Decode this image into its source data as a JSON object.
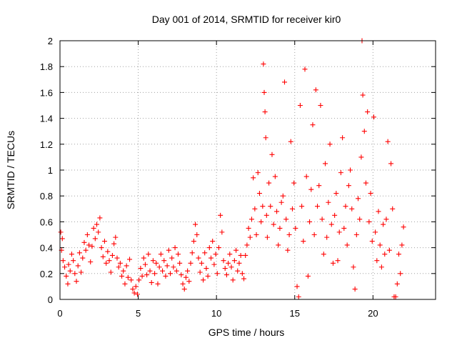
{
  "chart_data": {
    "type": "scatter",
    "title": "Day 001 of 2014, SRMTID for receiver kir0",
    "xlabel": "GPS time / hours",
    "ylabel": "SRMTID / TECUs",
    "xlim": [
      0,
      24
    ],
    "ylim": [
      0,
      2
    ],
    "xticks": [
      0,
      5,
      10,
      15,
      20
    ],
    "yticks": [
      0,
      0.2,
      0.4,
      0.6,
      0.8,
      1,
      1.2,
      1.4,
      1.6,
      1.8,
      2
    ],
    "xtick_labels": [
      "0",
      "5",
      "10",
      "15",
      "20"
    ],
    "ytick_labels": [
      "0",
      "0.2",
      "0.4",
      "0.6",
      "0.8",
      "1",
      "1.2",
      "1.4",
      "1.6",
      "1.8",
      "2"
    ],
    "grid": true,
    "marker": "+",
    "series": [
      {
        "name": "kir0",
        "color": "#ff0000",
        "points": [
          [
            0.05,
            0.52
          ],
          [
            0.1,
            0.38
          ],
          [
            0.15,
            0.47
          ],
          [
            0.2,
            0.3
          ],
          [
            0.3,
            0.25
          ],
          [
            0.4,
            0.18
          ],
          [
            0.5,
            0.12
          ],
          [
            0.55,
            0.27
          ],
          [
            0.65,
            0.22
          ],
          [
            0.75,
            0.35
          ],
          [
            0.85,
            0.3
          ],
          [
            0.95,
            0.2
          ],
          [
            1.05,
            0.14
          ],
          [
            1.15,
            0.26
          ],
          [
            1.25,
            0.36
          ],
          [
            1.35,
            0.21
          ],
          [
            1.45,
            0.32
          ],
          [
            1.55,
            0.44
          ],
          [
            1.65,
            0.38
          ],
          [
            1.75,
            0.5
          ],
          [
            1.85,
            0.42
          ],
          [
            1.95,
            0.29
          ],
          [
            2.05,
            0.41
          ],
          [
            2.15,
            0.55
          ],
          [
            2.25,
            0.47
          ],
          [
            2.35,
            0.58
          ],
          [
            2.45,
            0.52
          ],
          [
            2.55,
            0.63
          ],
          [
            2.65,
            0.4
          ],
          [
            2.75,
            0.33
          ],
          [
            2.85,
            0.45
          ],
          [
            2.95,
            0.28
          ],
          [
            3.05,
            0.37
          ],
          [
            3.15,
            0.3
          ],
          [
            3.25,
            0.21
          ],
          [
            3.35,
            0.34
          ],
          [
            3.45,
            0.43
          ],
          [
            3.55,
            0.48
          ],
          [
            3.65,
            0.32
          ],
          [
            3.75,
            0.25
          ],
          [
            3.85,
            0.28
          ],
          [
            3.95,
            0.18
          ],
          [
            4.05,
            0.22
          ],
          [
            4.15,
            0.12
          ],
          [
            4.25,
            0.26
          ],
          [
            4.35,
            0.17
          ],
          [
            4.45,
            0.31
          ],
          [
            4.55,
            0.15
          ],
          [
            4.65,
            0.08
          ],
          [
            4.75,
            0.05
          ],
          [
            4.85,
            0.1
          ],
          [
            4.95,
            0.04
          ],
          [
            5.05,
            0.15
          ],
          [
            5.15,
            0.24
          ],
          [
            5.25,
            0.18
          ],
          [
            5.35,
            0.32
          ],
          [
            5.45,
            0.27
          ],
          [
            5.55,
            0.19
          ],
          [
            5.65,
            0.35
          ],
          [
            5.75,
            0.22
          ],
          [
            5.85,
            0.13
          ],
          [
            5.95,
            0.3
          ],
          [
            6.05,
            0.2
          ],
          [
            6.15,
            0.28
          ],
          [
            6.25,
            0.12
          ],
          [
            6.35,
            0.25
          ],
          [
            6.45,
            0.35
          ],
          [
            6.55,
            0.22
          ],
          [
            6.65,
            0.3
          ],
          [
            6.75,
            0.18
          ],
          [
            6.85,
            0.26
          ],
          [
            6.95,
            0.38
          ],
          [
            7.05,
            0.2
          ],
          [
            7.15,
            0.32
          ],
          [
            7.25,
            0.25
          ],
          [
            7.35,
            0.4
          ],
          [
            7.45,
            0.22
          ],
          [
            7.55,
            0.35
          ],
          [
            7.65,
            0.28
          ],
          [
            7.75,
            0.19
          ],
          [
            7.85,
            0.12
          ],
          [
            7.95,
            0.08
          ],
          [
            8.05,
            0.17
          ],
          [
            8.15,
            0.22
          ],
          [
            8.25,
            0.14
          ],
          [
            8.35,
            0.28
          ],
          [
            8.45,
            0.36
          ],
          [
            8.55,
            0.45
          ],
          [
            8.65,
            0.58
          ],
          [
            8.75,
            0.5
          ],
          [
            8.85,
            0.32
          ],
          [
            8.95,
            0.21
          ],
          [
            9.05,
            0.28
          ],
          [
            9.15,
            0.15
          ],
          [
            9.25,
            0.36
          ],
          [
            9.35,
            0.24
          ],
          [
            9.45,
            0.18
          ],
          [
            9.55,
            0.4
          ],
          [
            9.65,
            0.32
          ],
          [
            9.75,
            0.45
          ],
          [
            9.85,
            0.27
          ],
          [
            9.95,
            0.35
          ],
          [
            10.05,
            0.2
          ],
          [
            10.15,
            0.4
          ],
          [
            10.25,
            0.65
          ],
          [
            10.35,
            0.52
          ],
          [
            10.45,
            0.3
          ],
          [
            10.55,
            0.24
          ],
          [
            10.65,
            0.19
          ],
          [
            10.75,
            0.28
          ],
          [
            10.85,
            0.35
          ],
          [
            10.95,
            0.25
          ],
          [
            11.05,
            0.15
          ],
          [
            11.15,
            0.3
          ],
          [
            11.25,
            0.38
          ],
          [
            11.35,
            0.22
          ],
          [
            11.45,
            0.28
          ],
          [
            11.55,
            0.34
          ],
          [
            11.65,
            0.2
          ],
          [
            11.75,
            0.16
          ],
          [
            11.85,
            0.34
          ],
          [
            11.95,
            0.42
          ],
          [
            12.05,
            0.55
          ],
          [
            12.15,
            0.48
          ],
          [
            12.25,
            0.62
          ],
          [
            12.35,
            0.94
          ],
          [
            12.45,
            0.7
          ],
          [
            12.55,
            0.5
          ],
          [
            12.65,
            0.98
          ],
          [
            12.75,
            0.82
          ],
          [
            12.85,
            0.6
          ],
          [
            12.95,
            0.72
          ],
          [
            13.0,
            1.82
          ],
          [
            13.05,
            1.6
          ],
          [
            13.1,
            1.45
          ],
          [
            13.15,
            1.25
          ],
          [
            13.2,
            0.65
          ],
          [
            13.25,
            0.48
          ],
          [
            13.35,
            0.9
          ],
          [
            13.45,
            0.72
          ],
          [
            13.55,
            1.12
          ],
          [
            13.65,
            0.58
          ],
          [
            13.75,
            0.95
          ],
          [
            13.85,
            0.68
          ],
          [
            13.95,
            0.42
          ],
          [
            14.05,
            0.55
          ],
          [
            14.15,
            0.75
          ],
          [
            14.25,
            0.8
          ],
          [
            14.35,
            1.68
          ],
          [
            14.45,
            0.62
          ],
          [
            14.55,
            0.38
          ],
          [
            14.65,
            0.5
          ],
          [
            14.75,
            1.22
          ],
          [
            14.85,
            0.7
          ],
          [
            14.95,
            0.9
          ],
          [
            15.05,
            0.55
          ],
          [
            15.15,
            0.1
          ],
          [
            15.25,
            0.02
          ],
          [
            15.35,
            1.5
          ],
          [
            15.45,
            0.72
          ],
          [
            15.55,
            0.45
          ],
          [
            15.65,
            1.78
          ],
          [
            15.75,
            0.95
          ],
          [
            15.85,
            0.18
          ],
          [
            15.95,
            0.6
          ],
          [
            16.05,
            0.85
          ],
          [
            16.15,
            1.35
          ],
          [
            16.25,
            0.5
          ],
          [
            16.35,
            1.62
          ],
          [
            16.45,
            0.72
          ],
          [
            16.55,
            0.88
          ],
          [
            16.65,
            1.5
          ],
          [
            16.75,
            0.62
          ],
          [
            16.85,
            0.35
          ],
          [
            16.95,
            1.05
          ],
          [
            17.05,
            0.48
          ],
          [
            17.15,
            0.75
          ],
          [
            17.25,
            1.2
          ],
          [
            17.35,
            0.58
          ],
          [
            17.45,
            0.28
          ],
          [
            17.55,
            0.65
          ],
          [
            17.65,
            0.82
          ],
          [
            17.75,
            0.3
          ],
          [
            17.85,
            0.52
          ],
          [
            17.95,
            0.98
          ],
          [
            18.05,
            1.25
          ],
          [
            18.15,
            0.55
          ],
          [
            18.25,
            0.72
          ],
          [
            18.35,
            0.42
          ],
          [
            18.45,
            0.88
          ],
          [
            18.55,
            1.0
          ],
          [
            18.65,
            0.7
          ],
          [
            18.75,
            0.25
          ],
          [
            18.85,
            0.08
          ],
          [
            18.95,
            0.5
          ],
          [
            19.05,
            0.78
          ],
          [
            19.15,
            0.62
          ],
          [
            19.25,
            1.1
          ],
          [
            19.3,
            2.0
          ],
          [
            19.35,
            1.58
          ],
          [
            19.45,
            1.3
          ],
          [
            19.55,
            0.9
          ],
          [
            19.65,
            1.45
          ],
          [
            19.75,
            0.6
          ],
          [
            19.85,
            0.82
          ],
          [
            19.95,
            0.45
          ],
          [
            20.05,
            1.41
          ],
          [
            20.15,
            0.52
          ],
          [
            20.25,
            0.3
          ],
          [
            20.35,
            0.68
          ],
          [
            20.45,
            0.42
          ],
          [
            20.55,
            0.25
          ],
          [
            20.65,
            0.58
          ],
          [
            20.75,
            0.35
          ],
          [
            20.85,
            0.62
          ],
          [
            20.95,
            1.22
          ],
          [
            21.05,
            0.38
          ],
          [
            21.15,
            1.05
          ],
          [
            21.25,
            0.7
          ],
          [
            21.35,
            0.02
          ],
          [
            21.45,
            0.02
          ],
          [
            21.55,
            0.12
          ],
          [
            21.65,
            0.35
          ],
          [
            21.75,
            0.2
          ],
          [
            21.85,
            0.42
          ],
          [
            21.95,
            0.56
          ]
        ]
      }
    ]
  }
}
